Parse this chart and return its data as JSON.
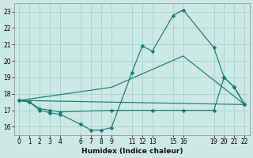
{
  "xlabel": "Humidex (Indice chaleur)",
  "background_color": "#cce9e5",
  "grid_color": "#aad4d0",
  "line_color": "#1a7a6e",
  "xlim": [
    -0.5,
    22.5
  ],
  "ylim": [
    15.5,
    23.5
  ],
  "yticks": [
    16,
    17,
    18,
    19,
    20,
    21,
    22,
    23
  ],
  "xtick_positions": [
    0,
    1,
    2,
    3,
    4,
    6,
    7,
    8,
    9,
    11,
    12,
    13,
    15,
    16,
    19,
    20,
    21,
    22
  ],
  "xtick_labels": [
    "0",
    "1",
    "2",
    "3",
    "4",
    "6",
    "7",
    "8",
    "9",
    "11",
    "12",
    "13",
    "15",
    "16",
    "19",
    "20",
    "21",
    "22"
  ],
  "line1_x": [
    0,
    1,
    2,
    3,
    4,
    6,
    7,
    8,
    9,
    11,
    12,
    13,
    15,
    16,
    19,
    20,
    21,
    22
  ],
  "line1_y": [
    17.6,
    17.5,
    17.0,
    16.85,
    16.75,
    16.15,
    15.8,
    15.8,
    15.95,
    19.3,
    20.9,
    20.6,
    22.75,
    23.1,
    20.8,
    19.0,
    18.4,
    17.35
  ],
  "line2_x": [
    0,
    1,
    2,
    3,
    4,
    9,
    13,
    16,
    19,
    20,
    21,
    22
  ],
  "line2_y": [
    17.6,
    17.5,
    17.1,
    17.0,
    16.9,
    17.0,
    17.0,
    17.0,
    17.0,
    19.0,
    18.4,
    17.35
  ],
  "line3_x": [
    0,
    22
  ],
  "line3_y": [
    17.6,
    17.35
  ],
  "line4_x": [
    0,
    9,
    16,
    22
  ],
  "line4_y": [
    17.6,
    18.4,
    20.3,
    17.35
  ]
}
